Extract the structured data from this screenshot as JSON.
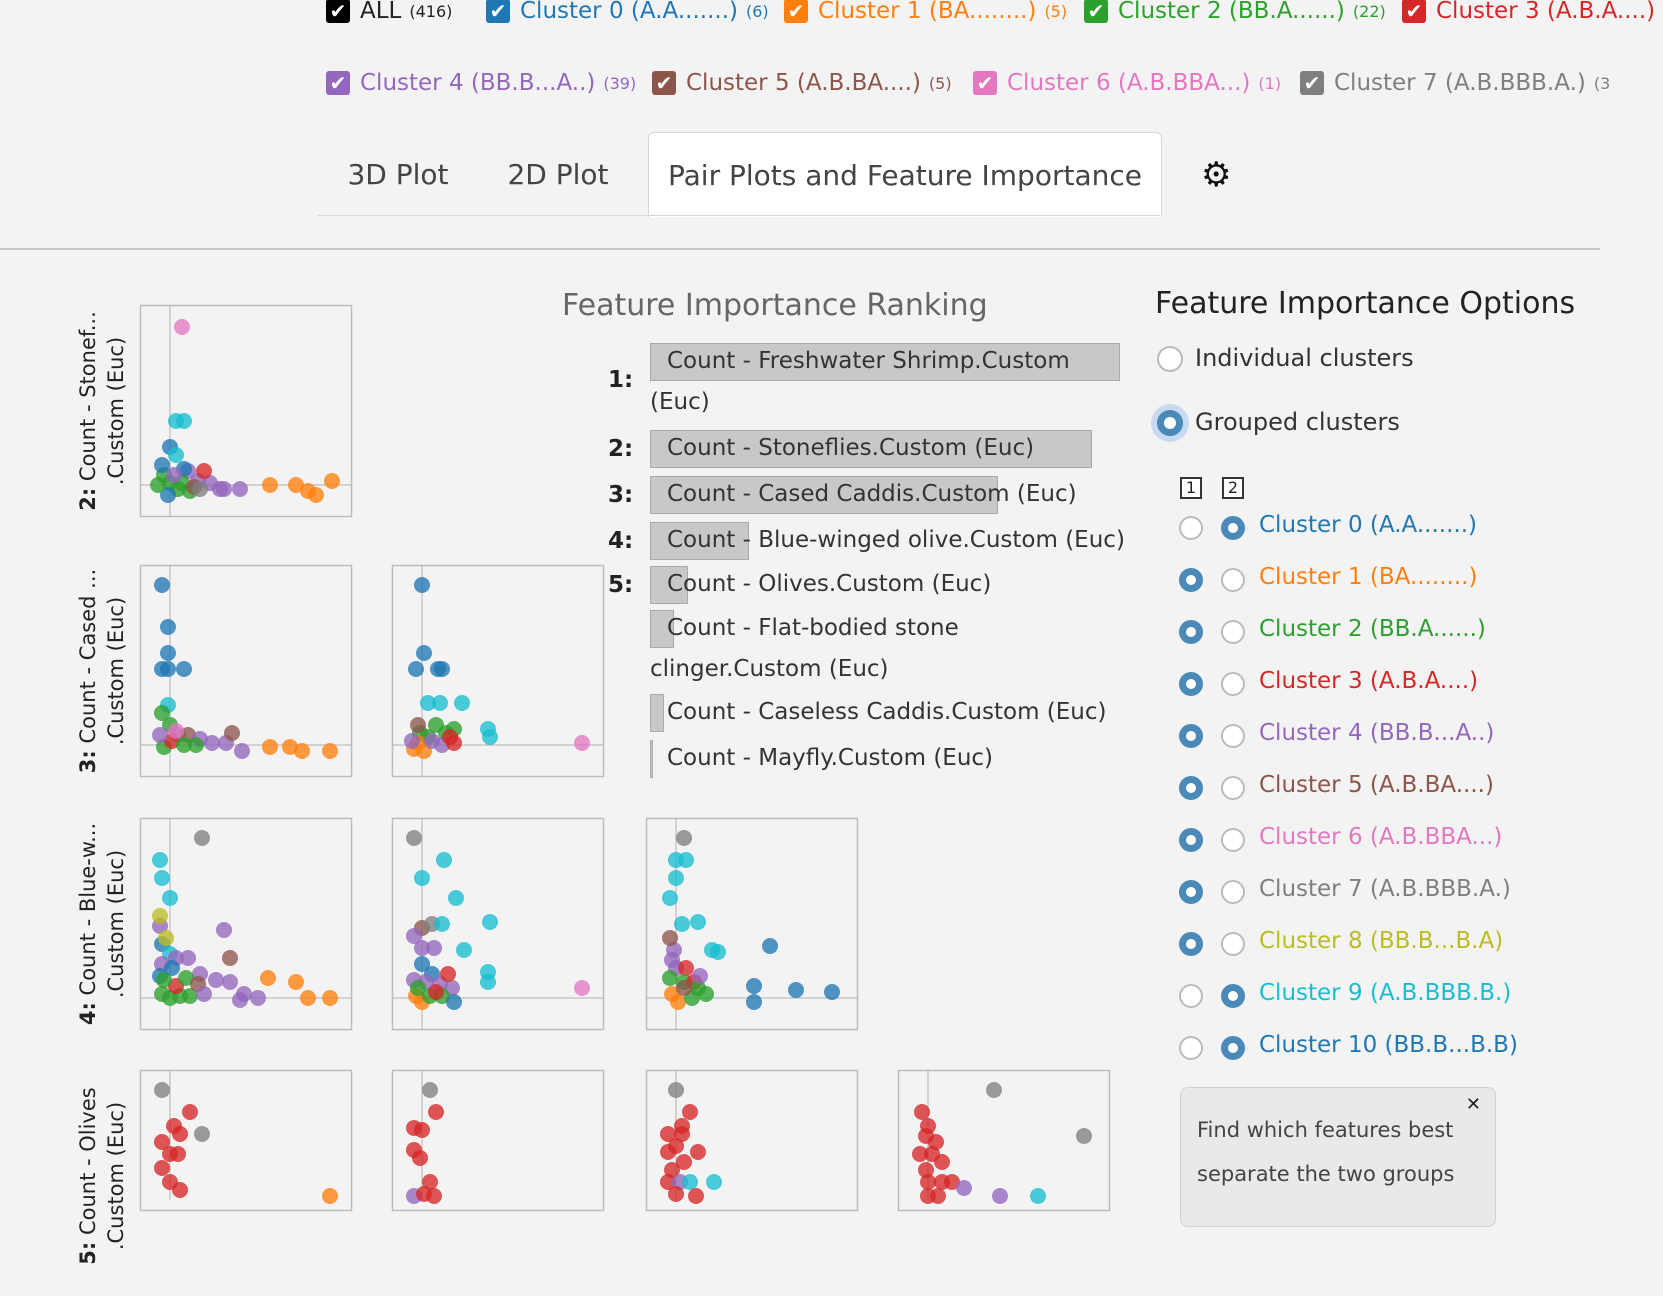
{
  "legend": [
    {
      "label": "ALL",
      "count": "(416)",
      "color": "#000000"
    },
    {
      "label": "Cluster 0 (A.A.......)",
      "count": "(6)",
      "color": "#1f77b4"
    },
    {
      "label": "Cluster 1 (BA........)",
      "count": "(5)",
      "color": "#ff7f0e"
    },
    {
      "label": "Cluster 2 (BB.A......)",
      "count": "(22)",
      "color": "#2ca02c"
    },
    {
      "label": "Cluster 3 (A.B.A....)",
      "count": "",
      "color": "#d62728"
    },
    {
      "label": "Cluster 4 (BB.B...A..)",
      "count": "(39)",
      "color": "#9467bd"
    },
    {
      "label": "Cluster 5 (A.B.BA....)",
      "count": "(5)",
      "color": "#8c564b"
    },
    {
      "label": "Cluster 6 (A.B.BBA...)",
      "count": "(1)",
      "color": "#e377c2"
    },
    {
      "label": "Cluster 7 (A.B.BBB.A.)",
      "count": "(3",
      "color": "#7f7f7f"
    }
  ],
  "tabs": [
    {
      "label": "3D Plot",
      "active": false
    },
    {
      "label": "2D Plot",
      "active": false
    },
    {
      "label": "Pair Plots and Feature Importance",
      "active": true
    }
  ],
  "gear_icon": "gear-icon",
  "pairplots": {
    "row_labels": [
      {
        "num": "2:",
        "text": "Count - Stonef...\n.Custom (Euc)"
      },
      {
        "num": "3:",
        "text": "Count - Cased ...\n.Custom (Euc)"
      },
      {
        "num": "4:",
        "text": "Count - Blue-w...\n.Custom (Euc)"
      },
      {
        "num": "5:",
        "text": "Count - Olives\n.Custom (Euc)"
      }
    ]
  },
  "feature_ranking": {
    "title": "Feature Importance Ranking",
    "items": [
      {
        "rank": "1:",
        "label": "Count - Freshwater Shrimp.Custom",
        "label2": "(Euc)",
        "importance": 1.0
      },
      {
        "rank": "2:",
        "label": "Count - Stoneflies.Custom (Euc)",
        "label2": "",
        "importance": 0.94
      },
      {
        "rank": "3:",
        "label": "Count - Cased Caddis.Custom (Euc)",
        "label2": "",
        "importance": 0.74
      },
      {
        "rank": "4:",
        "label": "Count - Blue-winged olive.Custom (Euc)",
        "label2": "",
        "importance": 0.21
      },
      {
        "rank": "5:",
        "label": "Count - Olives.Custom (Euc)",
        "label2": "",
        "importance": 0.08
      },
      {
        "rank": "",
        "label": "Count - Flat-bodied stone",
        "label2": "clinger.Custom (Euc)",
        "importance": 0.05
      },
      {
        "rank": "",
        "label": "Count - Caseless Caddis.Custom (Euc)",
        "label2": "",
        "importance": 0.03
      },
      {
        "rank": "",
        "label": "Count - Mayfly.Custom (Euc)",
        "label2": "",
        "importance": 0.005
      }
    ]
  },
  "options": {
    "title": "Feature Importance Options",
    "modes": [
      {
        "label": "Individual clusters",
        "selected": false
      },
      {
        "label": "Grouped clusters",
        "selected": true
      }
    ],
    "group_headers": [
      "1",
      "2"
    ],
    "clusters": [
      {
        "label": "Cluster 0 (A.A.......)",
        "color": "#1f77b4",
        "group": 2
      },
      {
        "label": "Cluster 1 (BA........)",
        "color": "#ff7f0e",
        "group": 1
      },
      {
        "label": "Cluster 2 (BB.A......)",
        "color": "#2ca02c",
        "group": 1
      },
      {
        "label": "Cluster 3 (A.B.A....)",
        "color": "#d62728",
        "group": 1
      },
      {
        "label": "Cluster 4 (BB.B...A..)",
        "color": "#9467bd",
        "group": 1
      },
      {
        "label": "Cluster 5 (A.B.BA....)",
        "color": "#8c564b",
        "group": 1
      },
      {
        "label": "Cluster 6 (A.B.BBA...)",
        "color": "#e377c2",
        "group": 1
      },
      {
        "label": "Cluster 7 (A.B.BBB.A.)",
        "color": "#7f7f7f",
        "group": 1
      },
      {
        "label": "Cluster 8 (BB.B...B.A)",
        "color": "#bcbd22",
        "group": 1
      },
      {
        "label": "Cluster 9 (A.B.BBB.B.)",
        "color": "#17becf",
        "group": 2
      },
      {
        "label": "Cluster 10 (BB.B...B.B)",
        "color": "#1f77b4",
        "group": 2
      }
    ],
    "tooltip": {
      "text": "Find which features best separate the two groups",
      "close_icon": "close-icon"
    }
  }
}
